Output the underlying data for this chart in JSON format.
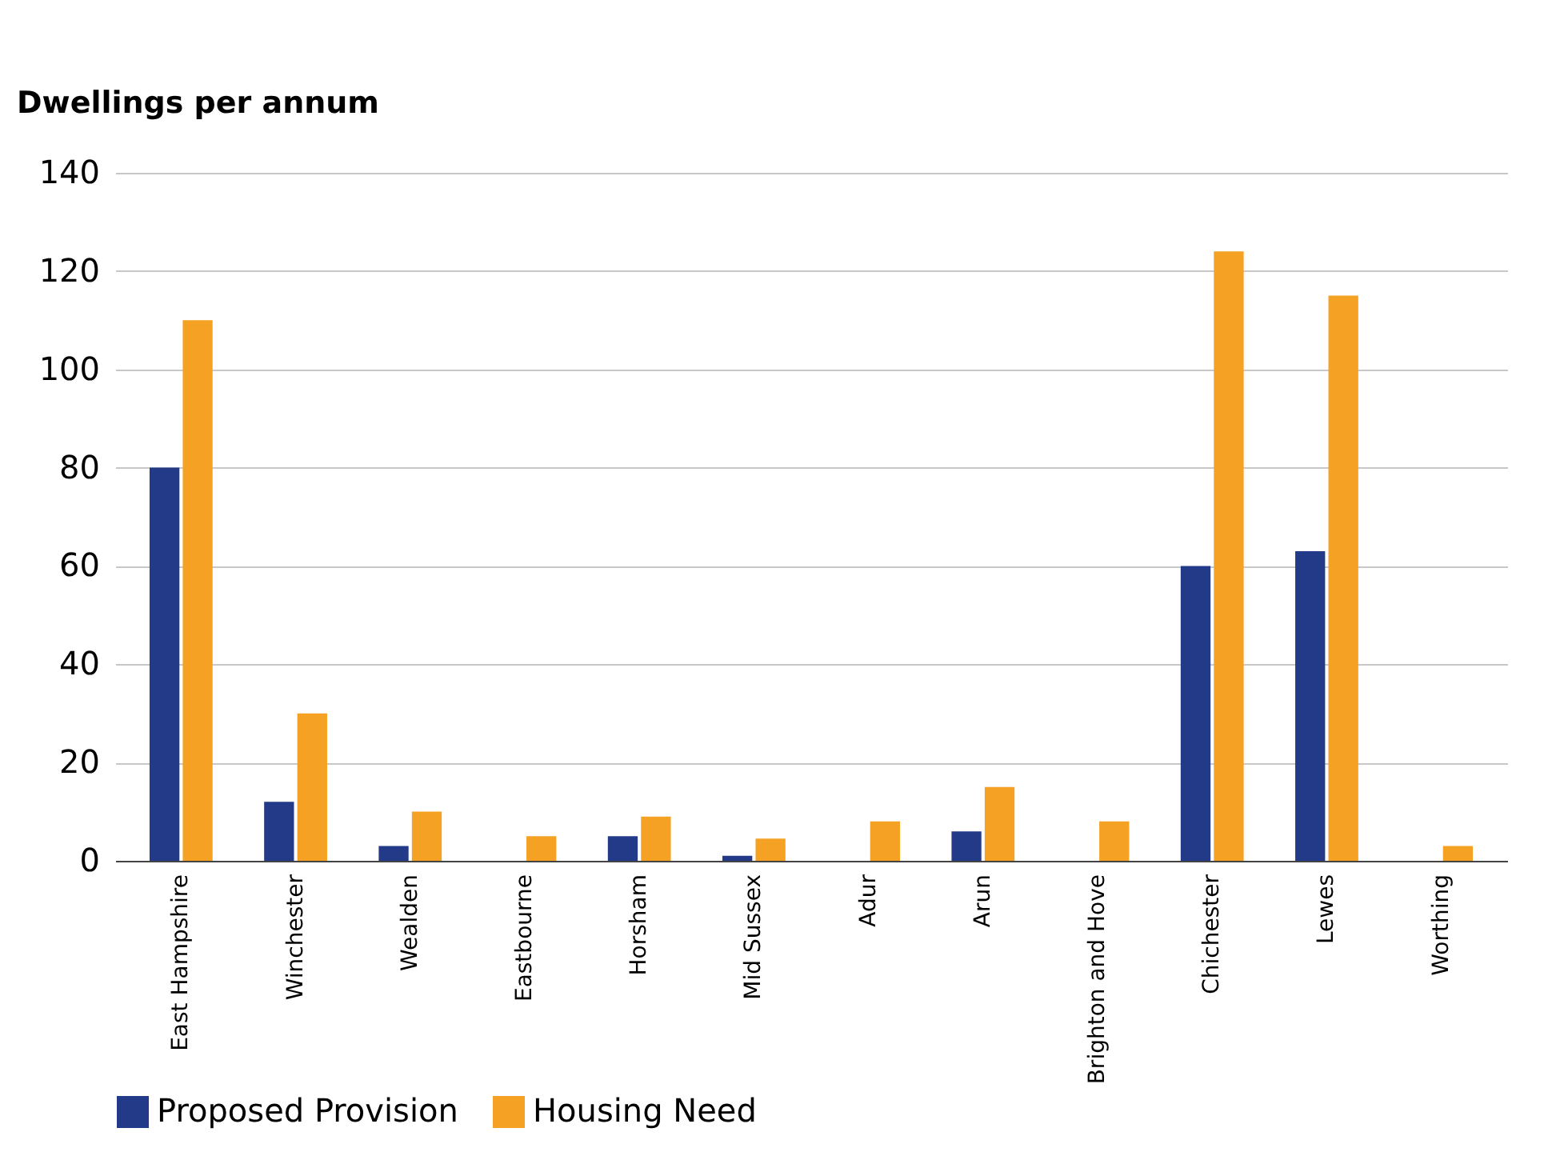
{
  "chart_data": {
    "type": "bar",
    "ylabel": "Dwellings per annum",
    "categories": [
      "East Hampshire",
      "Winchester",
      "Wealden",
      "Eastbourne",
      "Horsham",
      "Mid Sussex",
      "Adur",
      "Arun",
      "Brighton and Hove",
      "Chichester",
      "Lewes",
      "Worthing"
    ],
    "series": [
      {
        "name": "Proposed Provision",
        "color": "#233a88",
        "values": [
          80,
          12,
          3,
          0,
          5,
          1,
          0,
          6,
          0,
          60,
          63,
          0
        ]
      },
      {
        "name": "Housing Need",
        "color": "#f5a124",
        "values": [
          110,
          30,
          10,
          5,
          9,
          4.5,
          8,
          15,
          8,
          124,
          115,
          3
        ]
      }
    ],
    "ylim": [
      0,
      140
    ],
    "yticks": [
      0,
      20,
      40,
      60,
      80,
      100,
      120,
      140
    ],
    "grid": "y",
    "legend": "bottom"
  }
}
